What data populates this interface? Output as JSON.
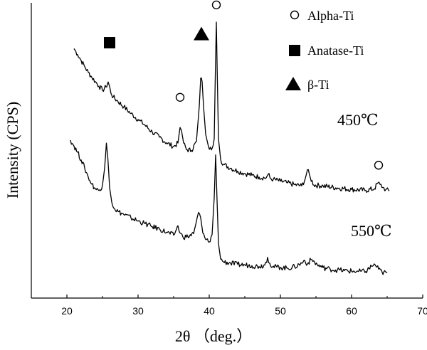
{
  "chart_data": {
    "type": "line",
    "title": "",
    "xlabel": "2θ （deg.）",
    "ylabel": "Intensity (CPS)",
    "xlim": [
      15,
      70
    ],
    "xticks": [
      20,
      30,
      40,
      50,
      60,
      70
    ],
    "xtick_labels": [
      "20",
      "30",
      "40",
      "50",
      "60",
      "70"
    ],
    "yticks_shown": false,
    "y_units": "relative intensity (0 = bottom of plot, 100 = top of plot)",
    "ylim": [
      0,
      100
    ],
    "grid": false,
    "legend_position": "top-right",
    "legend": [
      {
        "marker": "circle",
        "label": "Alpha-Ti"
      },
      {
        "marker": "square",
        "label": "Anatase-Ti"
      },
      {
        "marker": "triangle",
        "label": "β-Ti"
      }
    ],
    "series": [
      {
        "name": "450℃",
        "color": "#000000",
        "x": [
          21.0,
          21.5,
          22.0,
          22.5,
          23.0,
          23.5,
          24.0,
          24.5,
          25.0,
          25.5,
          25.8,
          26.1,
          26.3,
          26.5,
          27.0,
          28.0,
          29.0,
          30.0,
          31.0,
          32.0,
          33.0,
          34.0,
          35.0,
          35.6,
          35.9,
          36.1,
          36.4,
          36.8,
          37.5,
          38.2,
          38.6,
          38.8,
          39.0,
          39.2,
          39.5,
          39.9,
          40.3,
          40.7,
          40.85,
          41.0,
          41.15,
          41.3,
          41.6,
          42.0,
          43.0,
          44.0,
          45.0,
          46.0,
          47.0,
          48.0,
          48.3,
          48.6,
          49.0,
          50.0,
          51.0,
          52.0,
          53.0,
          53.5,
          53.8,
          54.2,
          54.7,
          56.0,
          58.0,
          60.0,
          62.0,
          63.2,
          63.7,
          64.0,
          64.4,
          64.8,
          65.3
        ],
        "y": [
          84.5,
          82.5,
          80.5,
          78.4,
          76.5,
          74.8,
          73.3,
          71.8,
          70.4,
          71.5,
          73.2,
          70.5,
          68.8,
          68.1,
          67.0,
          64.8,
          62.5,
          60.5,
          58.5,
          56.2,
          54.5,
          52.6,
          51.3,
          52.5,
          57.8,
          56.8,
          52.5,
          50.3,
          50.0,
          53.0,
          65.0,
          74.5,
          73.3,
          65.0,
          55.5,
          51.2,
          50.2,
          54.0,
          75.0,
          93.5,
          73.0,
          54.0,
          47.0,
          45.3,
          44.0,
          43.0,
          42.2,
          41.6,
          41.0,
          40.7,
          42.0,
          40.5,
          40.2,
          39.6,
          39.0,
          38.4,
          38.0,
          40.5,
          43.5,
          40.8,
          38.3,
          38.0,
          37.3,
          36.8,
          36.5,
          37.0,
          39.0,
          38.5,
          37.5,
          36.7,
          36.3
        ]
      },
      {
        "name": "550℃",
        "color": "#000000",
        "x": [
          20.5,
          21.0,
          21.5,
          22.0,
          22.5,
          23.0,
          23.5,
          24.0,
          24.5,
          25.0,
          25.3,
          25.55,
          25.75,
          26.0,
          26.3,
          26.7,
          27.2,
          28.0,
          29.0,
          30.0,
          31.0,
          32.0,
          33.0,
          34.0,
          35.0,
          35.3,
          35.6,
          35.9,
          36.3,
          37.0,
          37.8,
          38.2,
          38.5,
          38.8,
          39.1,
          39.5,
          40.0,
          40.4,
          40.7,
          40.9,
          41.1,
          41.3,
          41.6,
          42.0,
          43.0,
          44.0,
          45.0,
          46.0,
          47.0,
          47.8,
          48.2,
          48.5,
          48.9,
          50.0,
          51.0,
          52.0,
          53.0,
          53.4,
          53.8,
          54.3,
          54.8,
          55.2,
          56.0,
          57.0,
          58.0,
          59.0,
          60.0,
          61.0,
          62.0,
          62.8,
          63.3,
          63.8,
          64.3,
          65.0
        ],
        "y": [
          53.5,
          51.5,
          49.4,
          46.8,
          44.0,
          41.0,
          38.6,
          37.0,
          36.4,
          38.2,
          44.0,
          52.5,
          47.5,
          37.5,
          32.5,
          30.3,
          29.3,
          28.3,
          27.2,
          26.1,
          25.2,
          24.2,
          23.4,
          22.3,
          21.3,
          22.8,
          24.5,
          22.0,
          20.7,
          20.8,
          21.8,
          26.0,
          29.0,
          27.2,
          22.0,
          19.8,
          19.0,
          21.5,
          34.0,
          48.5,
          33.0,
          18.5,
          13.2,
          12.3,
          11.8,
          11.4,
          11.2,
          11.0,
          10.7,
          11.2,
          13.8,
          11.8,
          10.6,
          10.4,
          10.1,
          10.6,
          11.8,
          12.8,
          11.5,
          13.0,
          12.2,
          11.2,
          10.3,
          9.8,
          9.5,
          9.3,
          9.1,
          9.0,
          9.0,
          10.8,
          11.3,
          9.8,
          8.7,
          8.5
        ]
      }
    ],
    "annotations": [
      {
        "text": "450℃",
        "x": 60.5,
        "y": 60.5
      },
      {
        "text": "550℃",
        "x": 60.5,
        "y": 24.5
      }
    ],
    "peak_markers": [
      {
        "marker": "square",
        "x": 26.0,
        "y": 86.5
      },
      {
        "marker": "triangle",
        "x": 38.9,
        "y": 89.5
      },
      {
        "marker": "circle",
        "x": 35.9,
        "y": 68.0
      },
      {
        "marker": "circle",
        "x": 41.0,
        "y": 99.3
      },
      {
        "marker": "circle",
        "x": 63.8,
        "y": 45.0
      }
    ]
  }
}
